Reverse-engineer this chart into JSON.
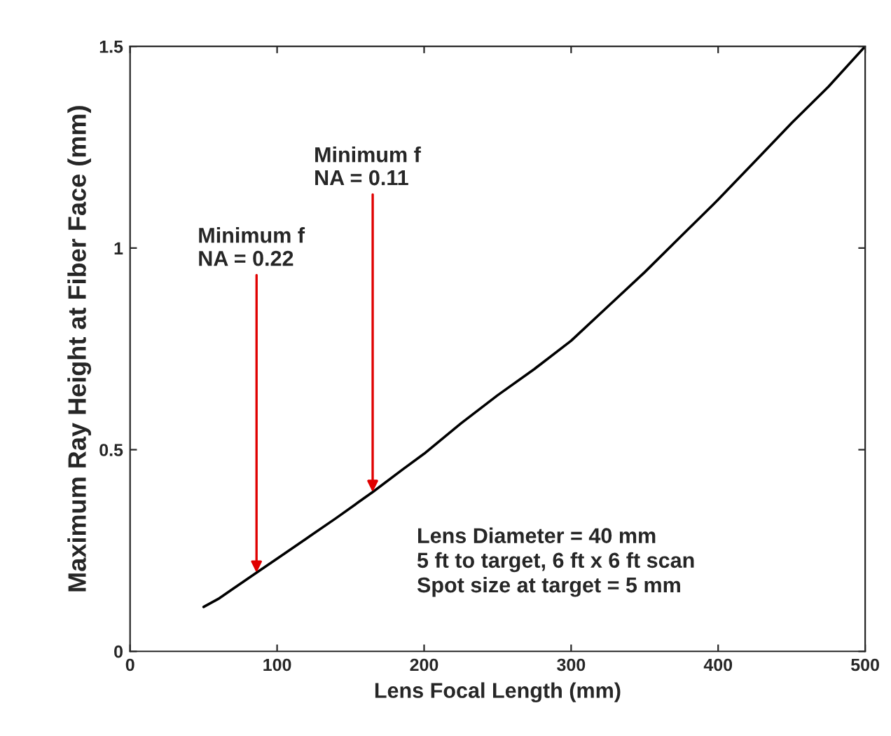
{
  "chart_data": {
    "type": "line",
    "xlabel": "Lens Focal Length (mm)",
    "ylabel": "Maximum Ray Height at Fiber Face (mm)",
    "x": [
      50,
      60,
      70,
      86,
      100,
      120,
      140,
      165,
      185,
      200,
      225,
      250,
      275,
      300,
      325,
      350,
      375,
      400,
      425,
      450,
      475,
      500
    ],
    "series": [
      {
        "color": "#000000",
        "values": [
          0.11,
          0.13,
          0.155,
          0.195,
          0.23,
          0.28,
          0.33,
          0.395,
          0.45,
          0.49,
          0.565,
          0.635,
          0.7,
          0.77,
          0.855,
          0.94,
          1.03,
          1.12,
          1.215,
          1.31,
          1.4,
          1.5
        ]
      }
    ],
    "xlim": [
      0,
      500
    ],
    "ylim": [
      0,
      1.5
    ],
    "xticks": [
      0,
      100,
      200,
      300,
      400,
      500
    ],
    "yticks": [
      0,
      0.5,
      1,
      1.5
    ],
    "grid": false,
    "legend": false,
    "marker": "none",
    "line_style": "solid",
    "annotations": [
      {
        "text": "Minimum f\nNA = 0.22",
        "x": 86,
        "y": 0.195
      },
      {
        "text": "Minimum f\nNA = 0.11",
        "x": 165,
        "y": 0.395
      },
      "Lens Diameter = 40 mm\n5 ft to target, 6 ft x 6 ft scan\nSpot size at target = 5 mm"
    ]
  }
}
